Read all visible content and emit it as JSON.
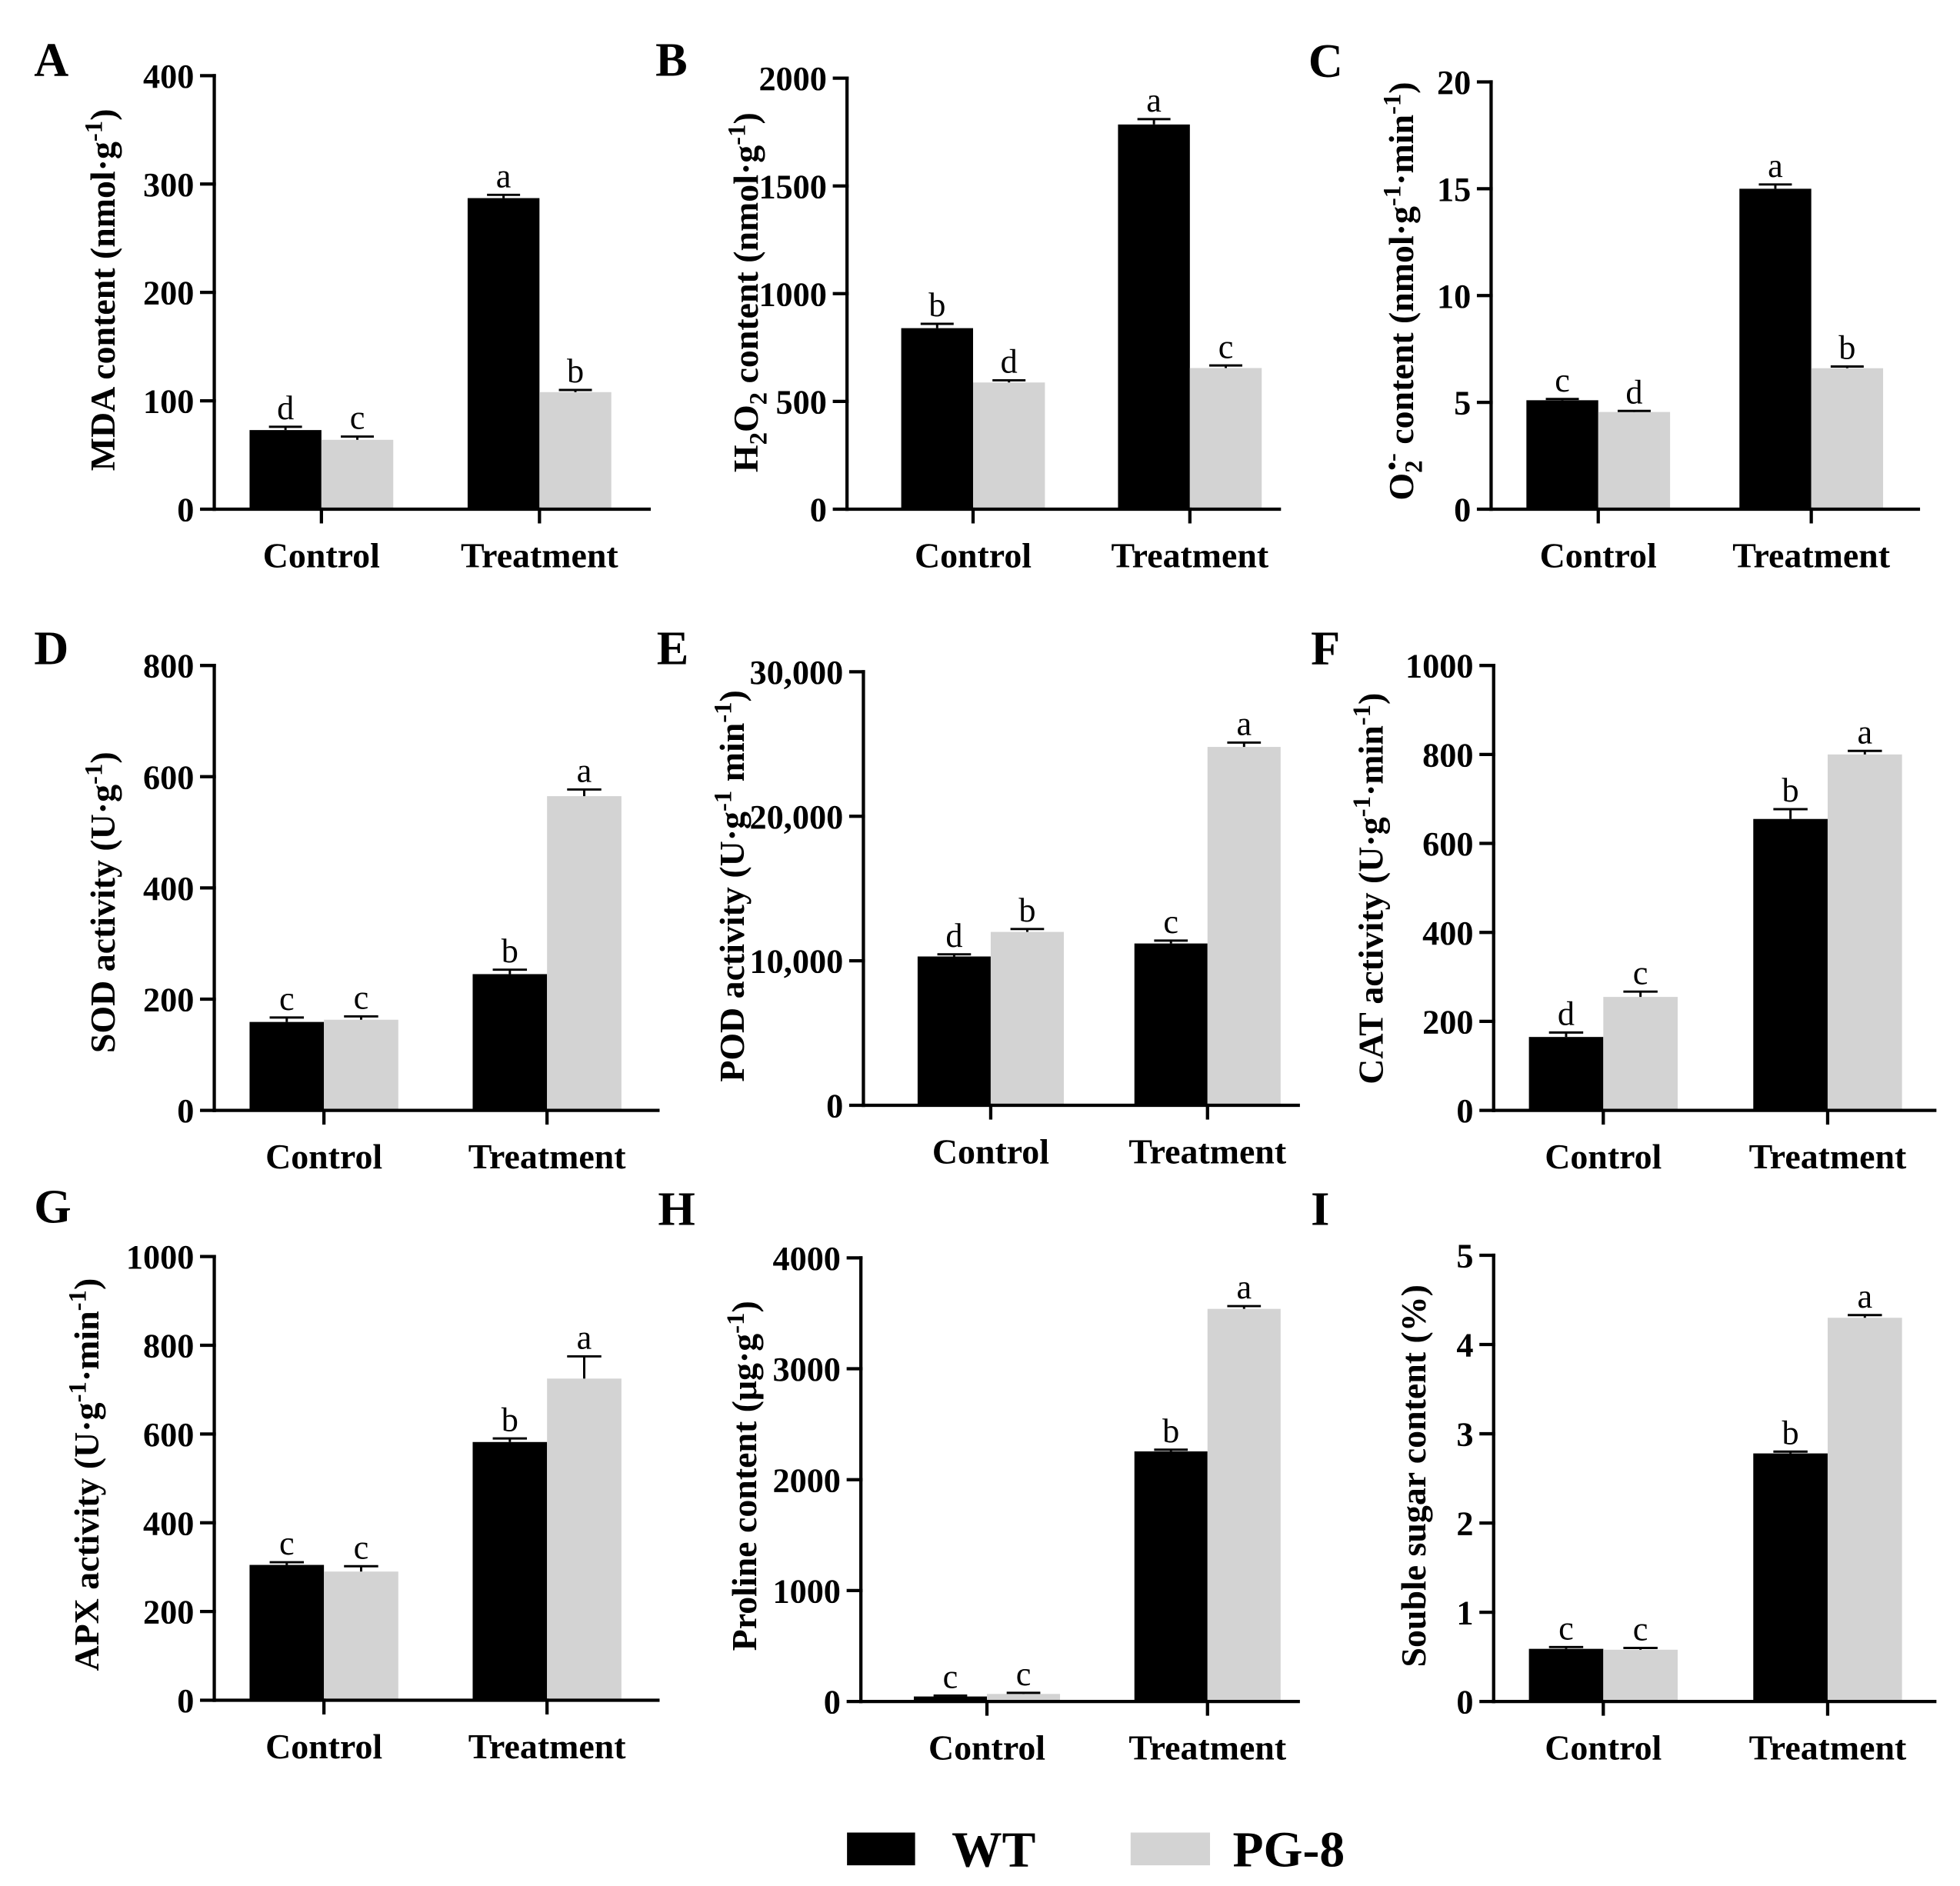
{
  "chart_data": [
    {
      "panel": "A",
      "type": "bar",
      "categories": [
        "Control",
        "Treatment"
      ],
      "series": [
        {
          "name": "WT",
          "color": "#000000",
          "values": [
            73,
            287
          ],
          "errors": [
            3,
            3
          ],
          "letters": [
            "d",
            "a"
          ]
        },
        {
          "name": "PG-8",
          "color": "#d3d3d3",
          "values": [
            64,
            108
          ],
          "errors": [
            3,
            2
          ],
          "letters": [
            "c",
            "b"
          ]
        }
      ],
      "ylabel": [
        {
          "text": "MDA content (nmol·g"
        },
        {
          "text": "-1",
          "script": "sup"
        },
        {
          "text": ")"
        }
      ],
      "ylim": [
        0,
        400
      ],
      "yticks": [
        0,
        100,
        200,
        300,
        400
      ],
      "ytick_labels": [
        "0",
        "100",
        "200",
        "300",
        "400"
      ]
    },
    {
      "panel": "B",
      "type": "bar",
      "categories": [
        "Control",
        "Treatment"
      ],
      "series": [
        {
          "name": "WT",
          "color": "#000000",
          "values": [
            840,
            1785
          ],
          "errors": [
            20,
            25
          ],
          "letters": [
            "b",
            "a"
          ]
        },
        {
          "name": "PG-8",
          "color": "#d3d3d3",
          "values": [
            588,
            655
          ],
          "errors": [
            10,
            12
          ],
          "letters": [
            "d",
            "c"
          ]
        }
      ],
      "ylabel": [
        {
          "text": "H"
        },
        {
          "text": "2",
          "script": "sub"
        },
        {
          "text": "O"
        },
        {
          "text": "2",
          "script": "sub"
        },
        {
          "text": " content (nmol·g"
        },
        {
          "text": "-1",
          "script": "sup"
        },
        {
          "text": ")"
        }
      ],
      "ylim": [
        0,
        2000
      ],
      "yticks": [
        0,
        500,
        1000,
        1500,
        2000
      ],
      "ytick_labels": [
        "0",
        "500",
        "1000",
        "1500",
        "2000"
      ]
    },
    {
      "panel": "C",
      "type": "bar",
      "categories": [
        "Control",
        "Treatment"
      ],
      "series": [
        {
          "name": "WT",
          "color": "#000000",
          "values": [
            5.1,
            15.0
          ],
          "errors": [
            0.06,
            0.2
          ],
          "letters": [
            "c",
            "a"
          ]
        },
        {
          "name": "PG-8",
          "color": "#d3d3d3",
          "values": [
            4.55,
            6.6
          ],
          "errors": [
            0.05,
            0.08
          ],
          "letters": [
            "d",
            "b"
          ]
        }
      ],
      "ylabel": [
        {
          "text": "O"
        },
        {
          "text": "2",
          "script": "sub"
        },
        {
          "text": "•-",
          "script": "sup"
        },
        {
          "text": " content (nmol·g"
        },
        {
          "text": "-1",
          "script": "sup"
        },
        {
          "text": "·min"
        },
        {
          "text": "-1",
          "script": "sup"
        },
        {
          "text": ")"
        }
      ],
      "ylim": [
        0,
        20
      ],
      "yticks": [
        0,
        5,
        10,
        15,
        20
      ],
      "ytick_labels": [
        "0",
        "5",
        "10",
        "15",
        "20"
      ]
    },
    {
      "panel": "D",
      "type": "bar",
      "categories": [
        "Control",
        "Treatment"
      ],
      "series": [
        {
          "name": "WT",
          "color": "#000000",
          "values": [
            159,
            245
          ],
          "errors": [
            8,
            8
          ],
          "letters": [
            "c",
            "b"
          ]
        },
        {
          "name": "PG-8",
          "color": "#d3d3d3",
          "values": [
            163,
            565
          ],
          "errors": [
            6,
            12
          ],
          "letters": [
            "c",
            "a"
          ]
        }
      ],
      "ylabel": [
        {
          "text": "SOD activity (U·g"
        },
        {
          "text": "-1",
          "script": "sup"
        },
        {
          "text": ")"
        }
      ],
      "ylim": [
        0,
        800
      ],
      "yticks": [
        0,
        200,
        400,
        600,
        800
      ],
      "ytick_labels": [
        "0",
        "200",
        "400",
        "600",
        "800"
      ]
    },
    {
      "panel": "E",
      "type": "bar",
      "categories": [
        "Control",
        "Treatment"
      ],
      "series": [
        {
          "name": "WT",
          "color": "#000000",
          "values": [
            10300,
            11200
          ],
          "errors": [
            150,
            200
          ],
          "letters": [
            "d",
            "c"
          ]
        },
        {
          "name": "PG-8",
          "color": "#d3d3d3",
          "values": [
            12000,
            24800
          ],
          "errors": [
            200,
            300
          ],
          "letters": [
            "b",
            "a"
          ]
        }
      ],
      "ylabel": [
        {
          "text": "POD activity (U·g"
        },
        {
          "text": "-1",
          "script": "sup"
        },
        {
          "text": " min"
        },
        {
          "text": "-1",
          "script": "sup"
        },
        {
          "text": ")"
        }
      ],
      "ylim": [
        0,
        30000
      ],
      "yticks": [
        0,
        10000,
        20000,
        30000
      ],
      "ytick_labels": [
        "0",
        "10,000",
        "20,000",
        "30,000"
      ]
    },
    {
      "panel": "F",
      "type": "bar",
      "categories": [
        "Control",
        "Treatment"
      ],
      "series": [
        {
          "name": "WT",
          "color": "#000000",
          "values": [
            165,
            655
          ],
          "errors": [
            10,
            22
          ],
          "letters": [
            "d",
            "b"
          ]
        },
        {
          "name": "PG-8",
          "color": "#d3d3d3",
          "values": [
            255,
            800
          ],
          "errors": [
            12,
            8
          ],
          "letters": [
            "c",
            "a"
          ]
        }
      ],
      "ylabel": [
        {
          "text": "CAT activity (U·g"
        },
        {
          "text": "-1",
          "script": "sup"
        },
        {
          "text": "·min"
        },
        {
          "text": "-1",
          "script": "sup"
        },
        {
          "text": ")"
        }
      ],
      "ylim": [
        0,
        1000
      ],
      "yticks": [
        0,
        200,
        400,
        600,
        800,
        1000
      ],
      "ytick_labels": [
        "0",
        "200",
        "400",
        "600",
        "800",
        "1000"
      ]
    },
    {
      "panel": "G",
      "type": "bar",
      "categories": [
        "Control",
        "Treatment"
      ],
      "series": [
        {
          "name": "WT",
          "color": "#000000",
          "values": [
            305,
            582
          ],
          "errors": [
            6,
            8
          ],
          "letters": [
            "c",
            "b"
          ]
        },
        {
          "name": "PG-8",
          "color": "#d3d3d3",
          "values": [
            290,
            725
          ],
          "errors": [
            12,
            50
          ],
          "letters": [
            "c",
            "a"
          ]
        }
      ],
      "ylabel": [
        {
          "text": "APX activity (U·g"
        },
        {
          "text": "-1",
          "script": "sup"
        },
        {
          "text": "·min"
        },
        {
          "text": "-1",
          "script": "sup"
        },
        {
          "text": ")"
        }
      ],
      "ylim": [
        0,
        1000
      ],
      "yticks": [
        0,
        200,
        400,
        600,
        800,
        1000
      ],
      "ytick_labels": [
        "0",
        "200",
        "400",
        "600",
        "800",
        "1000"
      ]
    },
    {
      "panel": "H",
      "type": "bar",
      "categories": [
        "Control",
        "Treatment"
      ],
      "series": [
        {
          "name": "WT",
          "color": "#000000",
          "values": [
            45,
            2255
          ],
          "errors": [
            8,
            15
          ],
          "letters": [
            "c",
            "b"
          ]
        },
        {
          "name": "PG-8",
          "color": "#d3d3d3",
          "values": [
            68,
            3540
          ],
          "errors": [
            10,
            25
          ],
          "letters": [
            "c",
            "a"
          ]
        }
      ],
      "ylabel": [
        {
          "text": "Proline content (μg·g"
        },
        {
          "text": "-1",
          "script": "sup"
        },
        {
          "text": ")"
        }
      ],
      "ylim": [
        0,
        4000
      ],
      "yticks": [
        0,
        1000,
        2000,
        3000,
        4000
      ],
      "ytick_labels": [
        "0",
        "1000",
        "2000",
        "3000",
        "4000"
      ]
    },
    {
      "panel": "I",
      "type": "bar",
      "categories": [
        "Control",
        "Treatment"
      ],
      "series": [
        {
          "name": "WT",
          "color": "#000000",
          "values": [
            0.59,
            2.78
          ],
          "errors": [
            0.02,
            0.02
          ],
          "letters": [
            "c",
            "b"
          ]
        },
        {
          "name": "PG-8",
          "color": "#d3d3d3",
          "values": [
            0.58,
            4.3
          ],
          "errors": [
            0.02,
            0.03
          ],
          "letters": [
            "c",
            "a"
          ]
        }
      ],
      "ylabel": [
        {
          "text": "Souble sugar content (%)"
        }
      ],
      "ylim": [
        0,
        5
      ],
      "yticks": [
        0,
        1,
        2,
        3,
        4,
        5
      ],
      "ytick_labels": [
        "0",
        "1",
        "2",
        "3",
        "4",
        "5"
      ]
    }
  ]
}
